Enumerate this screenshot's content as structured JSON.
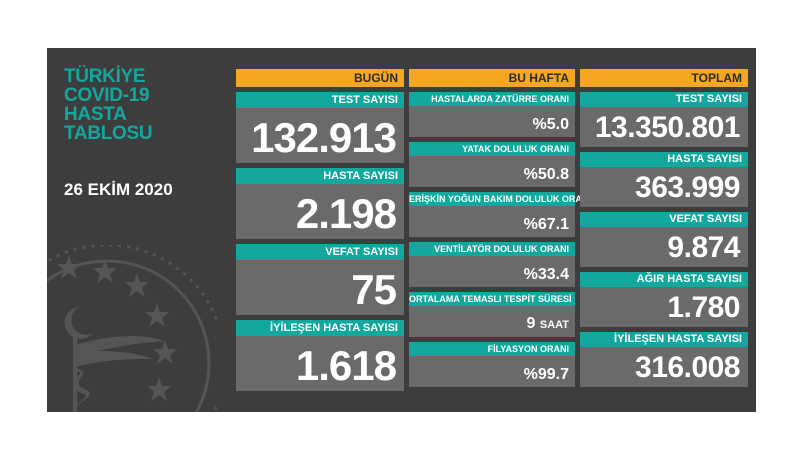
{
  "title_lines": [
    "TÜRKİYE",
    "COVID-19",
    "HASTA",
    "TABLOSU"
  ],
  "date": "26 EKİM 2020",
  "colors": {
    "teal": "#13a89e",
    "orange": "#f5a623",
    "panel": "#3d3d3d",
    "card": "#6a6a6a"
  },
  "emblem_icon": "ministry-of-health-emblem-icon",
  "bugun": {
    "header": "BUGÜN",
    "cards": [
      {
        "label": "TEST SAYISI",
        "value": "132.913"
      },
      {
        "label": "HASTA SAYISI",
        "value": "2.198"
      },
      {
        "label": "VEFAT SAYISI",
        "value": "75"
      },
      {
        "label": "İYİLEŞEN HASTA SAYISI",
        "value": "1.618"
      }
    ]
  },
  "bu_hafta": {
    "header": "BU HAFTA",
    "cards": [
      {
        "label": "HASTALARDA ZATÜRRE ORANI",
        "value": "%5.0"
      },
      {
        "label": "YATAK DOLULUK ORANI",
        "value": "%50.8"
      },
      {
        "label": "ERİŞKİN YOĞUN BAKIM DOLULUK ORANI",
        "value": "%67.1"
      },
      {
        "label": "VENTİLATÖR DOLULUK ORANI",
        "value": "%33.4"
      },
      {
        "label": "ORTALAMA TEMASLI TESPİT SÜRESİ",
        "value": "9",
        "unit": "SAAT"
      },
      {
        "label": "FİLYASYON ORANI",
        "value": "%99.7"
      }
    ]
  },
  "toplam": {
    "header": "TOPLAM",
    "cards": [
      {
        "label": "TEST SAYISI",
        "value": "13.350.801"
      },
      {
        "label": "HASTA SAYISI",
        "value": "363.999"
      },
      {
        "label": "VEFAT SAYISI",
        "value": "9.874"
      },
      {
        "label": "AĞIR HASTA SAYISI",
        "value": "1.780"
      },
      {
        "label": "İYİLEŞEN HASTA SAYISI",
        "value": "316.008"
      }
    ]
  }
}
